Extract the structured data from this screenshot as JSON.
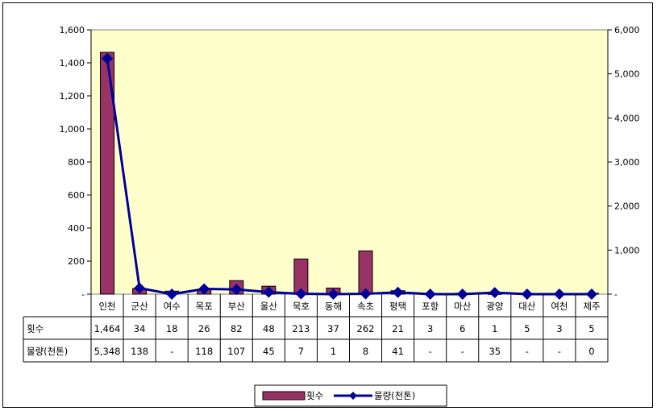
{
  "chart_data": {
    "type": "bar",
    "categories": [
      "인천",
      "군산",
      "여수",
      "목포",
      "부산",
      "울산",
      "묵호",
      "동해",
      "속초",
      "평택",
      "포항",
      "마산",
      "광양",
      "대산",
      "여천",
      "제주"
    ],
    "series": [
      {
        "name": "횟수",
        "type": "bar",
        "axis": "left",
        "values": [
          1464,
          34,
          18,
          26,
          82,
          48,
          213,
          37,
          262,
          21,
          3,
          6,
          1,
          5,
          3,
          5
        ],
        "color": "#993366"
      },
      {
        "name": "물량(천톤)",
        "type": "line",
        "axis": "right",
        "values": [
          5348,
          138,
          0,
          118,
          107,
          45,
          7,
          1,
          8,
          41,
          0,
          0,
          35,
          0,
          0,
          0
        ],
        "color": "#000099"
      }
    ],
    "table": {
      "row_labels": [
        "횟수",
        "물량(천톤)"
      ],
      "rows": [
        [
          "1,464",
          "34",
          "18",
          "26",
          "82",
          "48",
          "213",
          "37",
          "262",
          "21",
          "3",
          "6",
          "1",
          "5",
          "3",
          "5"
        ],
        [
          "5,348",
          "138",
          "-",
          "118",
          "107",
          "45",
          "7",
          "1",
          "8",
          "41",
          "-",
          "-",
          "35",
          "-",
          "-",
          "0"
        ]
      ]
    },
    "y_left": {
      "ylim": [
        0,
        1600
      ],
      "ticks": [
        "-",
        "200",
        "400",
        "600",
        "800",
        "1,000",
        "1,200",
        "1,400",
        "1,600"
      ]
    },
    "y_right": {
      "ylim": [
        0,
        6000
      ],
      "ticks": [
        "-",
        "1,000",
        "2,000",
        "3,000",
        "4,000",
        "5,000",
        "6,000"
      ]
    },
    "plot_background": "#ffffcc",
    "grid": false,
    "legend": {
      "placement": "bottom-center",
      "items": [
        "횟수",
        "물량(천톤)"
      ]
    }
  }
}
